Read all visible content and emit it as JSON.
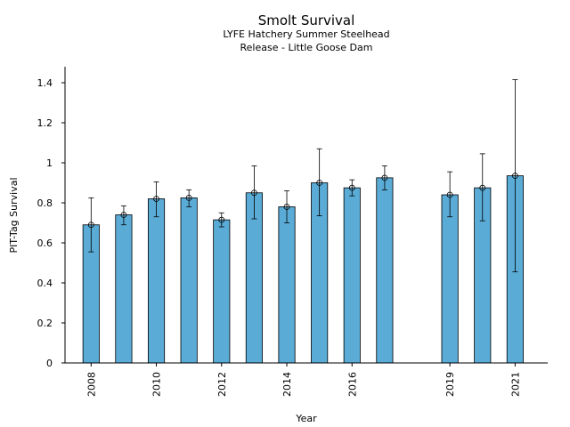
{
  "chart_data": {
    "type": "bar",
    "title": "Smolt Survival",
    "subtitle_lines": [
      "LYFE Hatchery Summer Steelhead",
      "Release - Little Goose Dam"
    ],
    "xlabel": "Year",
    "ylabel": "PIT-Tag Survival",
    "ylim": [
      0,
      1.48
    ],
    "xlim": [
      2007.2,
      2022.0
    ],
    "y_ticks": [
      0,
      0.2,
      0.4,
      0.6,
      0.8,
      1,
      1.2,
      1.4
    ],
    "y_tick_labels": [
      "0",
      "0.2",
      "0.4",
      "0.6",
      "0.8",
      "1",
      "1.2",
      "1.4"
    ],
    "x_ticks": [
      2008,
      2010,
      2012,
      2014,
      2016,
      2019,
      2021
    ],
    "x_tick_labels": [
      "2008",
      "2010",
      "2012",
      "2014",
      "2016",
      "2019",
      "2021"
    ],
    "grid": false,
    "bar_color": "#5aabd6",
    "points": [
      {
        "x": 2008,
        "y": 0.69,
        "low": 0.555,
        "high": 0.825
      },
      {
        "x": 2009,
        "y": 0.74,
        "low": 0.69,
        "high": 0.785
      },
      {
        "x": 2010,
        "y": 0.82,
        "low": 0.73,
        "high": 0.905
      },
      {
        "x": 2011,
        "y": 0.825,
        "low": 0.78,
        "high": 0.865
      },
      {
        "x": 2012,
        "y": 0.715,
        "low": 0.68,
        "high": 0.75
      },
      {
        "x": 2013,
        "y": 0.85,
        "low": 0.72,
        "high": 0.985
      },
      {
        "x": 2014,
        "y": 0.78,
        "low": 0.7,
        "high": 0.86
      },
      {
        "x": 2015,
        "y": 0.9,
        "low": 0.735,
        "high": 1.07
      },
      {
        "x": 2016,
        "y": 0.875,
        "low": 0.835,
        "high": 0.915
      },
      {
        "x": 2017,
        "y": 0.925,
        "low": 0.865,
        "high": 0.985
      },
      {
        "x": 2019,
        "y": 0.84,
        "low": 0.73,
        "high": 0.955
      },
      {
        "x": 2020,
        "y": 0.875,
        "low": 0.71,
        "high": 1.045
      },
      {
        "x": 2021,
        "y": 0.935,
        "low": 0.455,
        "high": 1.415
      }
    ]
  }
}
